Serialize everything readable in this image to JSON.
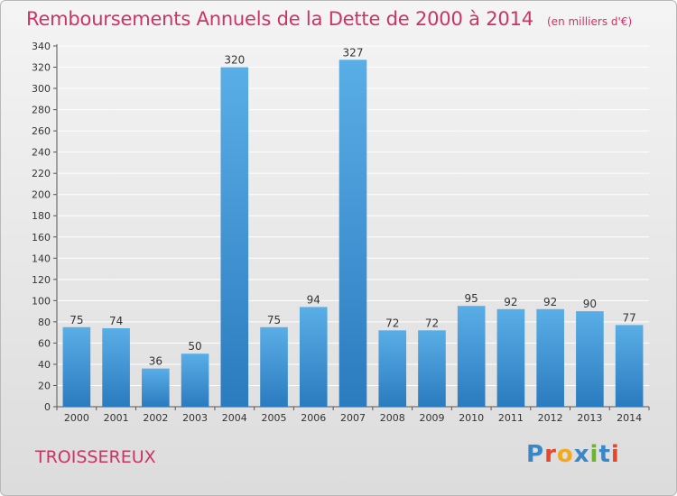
{
  "title": "Remboursements Annuels de la Dette de 2000 à 2014",
  "unit_note": "(en milliers d'€)",
  "city": "TROISSEREUX",
  "logo": {
    "text": "Proxiti",
    "letters": [
      "P",
      "r",
      "o",
      "x",
      "i",
      "t",
      "i"
    ],
    "colors": [
      "#3a87c8",
      "#e8462c",
      "#f4a81d",
      "#3a87c8",
      "#6bb42d",
      "#3a87c8",
      "#e8462c"
    ]
  },
  "colors": {
    "title": "#cc3366",
    "bar_top": "#5aaee6",
    "bar_bottom": "#2a7bbf",
    "grid": "#ffffff"
  },
  "chart_data": {
    "type": "bar",
    "title": "Remboursements Annuels de la Dette de 2000 à 2014",
    "xlabel": "",
    "ylabel": "",
    "categories": [
      "2000",
      "2001",
      "2002",
      "2003",
      "2004",
      "2005",
      "2006",
      "2007",
      "2008",
      "2009",
      "2010",
      "2011",
      "2012",
      "2013",
      "2014"
    ],
    "values": [
      75,
      74,
      36,
      50,
      320,
      75,
      94,
      327,
      72,
      72,
      95,
      92,
      92,
      90,
      77
    ],
    "ylim": [
      0,
      340
    ],
    "yticks": [
      0,
      20,
      40,
      60,
      80,
      100,
      120,
      140,
      160,
      180,
      200,
      220,
      240,
      260,
      280,
      300,
      320,
      340
    ],
    "grid": true,
    "legend": "none"
  }
}
